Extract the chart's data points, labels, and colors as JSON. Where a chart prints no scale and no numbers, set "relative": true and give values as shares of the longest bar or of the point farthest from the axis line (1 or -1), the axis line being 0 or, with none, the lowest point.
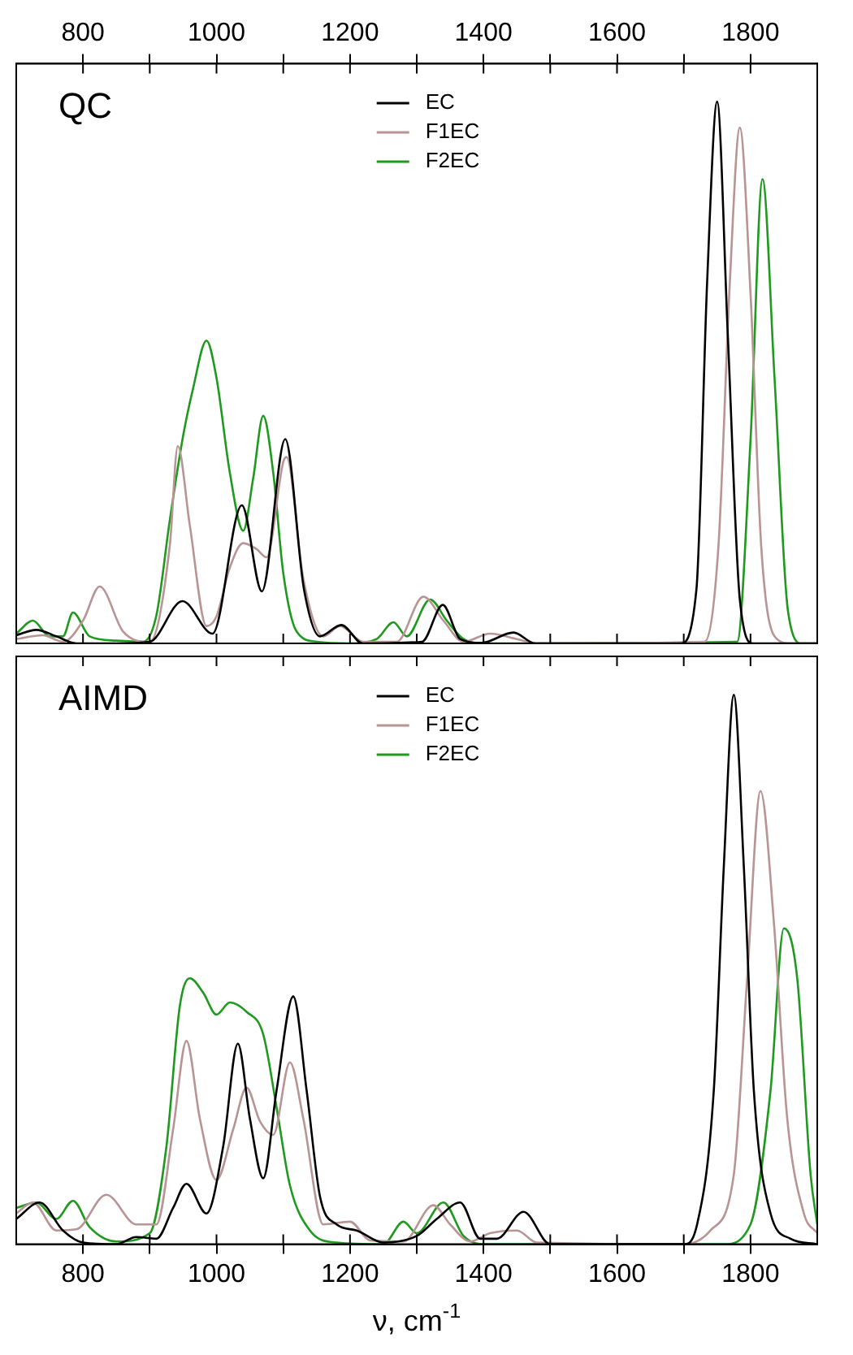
{
  "chart_data": [
    {
      "type": "line",
      "title": "QC",
      "relative": true,
      "legend": "top",
      "tick_labels": "x",
      "xlim": [
        700,
        1900
      ],
      "xticks": [
        800,
        {
          "value": 900,
          "label": null
        },
        1000,
        {
          "value": 1100,
          "label": null
        },
        1200,
        {
          "value": 1300,
          "label": null
        },
        1400,
        {
          "value": 1500,
          "label": null
        },
        1600,
        {
          "value": 1700,
          "label": null
        },
        1800
      ],
      "series": [
        {
          "name": "EC",
          "color": "#000000",
          "x": [
            700,
            730,
            760,
            790,
            850,
            900,
            949,
            994,
            1038,
            1068,
            1103,
            1131,
            1155,
            1187,
            1219,
            1308,
            1339,
            1365,
            1397,
            1445,
            1477,
            1695,
            1719,
            1735,
            1750,
            1766,
            1784,
            1804,
            1900
          ],
          "values": [
            0.015,
            0.025,
            0.013,
            0,
            0,
            0.003,
            0.078,
            0.018,
            0.255,
            0.096,
            0.377,
            0.1,
            0.013,
            0.034,
            0,
            0.003,
            0.071,
            0.008,
            0.001,
            0.02,
            0,
            0,
            0.1,
            0.666,
            1,
            0.569,
            0.081,
            0,
            0
          ]
        },
        {
          "name": "F1EC",
          "color": "#b89494",
          "x": [
            700,
            740,
            770,
            800,
            825,
            860,
            900,
            930,
            942,
            960,
            985,
            1000,
            1020,
            1040,
            1060,
            1075,
            1100,
            1105,
            1130,
            1160,
            1185,
            1220,
            1270,
            1310,
            1340,
            1370,
            1410,
            1450,
            1480,
            1731,
            1752,
            1769,
            1784,
            1800,
            1816,
            1836,
            1860,
            1900
          ],
          "values": [
            0.008,
            0.015,
            0.003,
            0.042,
            0.105,
            0.022,
            0.003,
            0.18,
            0.364,
            0.218,
            0.032,
            0.05,
            0.14,
            0.185,
            0.174,
            0.159,
            0.335,
            0.344,
            0.12,
            0.013,
            0.032,
            0.003,
            0.003,
            0.086,
            0.042,
            0.003,
            0.018,
            0.008,
            0,
            0.003,
            0.18,
            0.666,
            0.952,
            0.647,
            0.18,
            0.013,
            0,
            0
          ]
        },
        {
          "name": "F2EC",
          "color": "#1f9a1f",
          "x": [
            700,
            725,
            750,
            770,
            785,
            810,
            850,
            890,
            910,
            930,
            950,
            965,
            985,
            1000,
            1020,
            1040,
            1055,
            1070,
            1085,
            1100,
            1120,
            1150,
            1200,
            1240,
            1265,
            1285,
            1320,
            1345,
            1370,
            1400,
            1780,
            1800,
            1818,
            1836,
            1856,
            1877,
            1900
          ],
          "values": [
            0.018,
            0.042,
            0.013,
            0.013,
            0.057,
            0.013,
            0.005,
            0.003,
            0.052,
            0.227,
            0.383,
            0.471,
            0.559,
            0.49,
            0.315,
            0.208,
            0.305,
            0.42,
            0.315,
            0.13,
            0.022,
            0.003,
            0,
            0.008,
            0.039,
            0.013,
            0.081,
            0.042,
            0.008,
            0,
            0.003,
            0.374,
            0.857,
            0.49,
            0.061,
            0,
            0
          ]
        }
      ]
    },
    {
      "type": "line",
      "title": "AIMD",
      "xlabel": "ν, cm$^{-1}$",
      "relative": true,
      "legend": "top",
      "tick_labels": "x",
      "xlim": [
        700,
        1900
      ],
      "xticks": [
        800,
        {
          "value": 900,
          "label": null
        },
        1000,
        {
          "value": 1100,
          "label": null
        },
        1200,
        {
          "value": 1300,
          "label": null
        },
        1400,
        {
          "value": 1500,
          "label": null
        },
        1600,
        {
          "value": 1700,
          "label": null
        },
        1800
      ],
      "series": [
        {
          "name": "EC",
          "color": "#000000",
          "x": [
            700,
            735,
            770,
            800,
            850,
            880,
            910,
            935,
            955,
            985,
            1010,
            1032,
            1050,
            1070,
            1090,
            1115,
            1135,
            1155,
            1180,
            1210,
            1250,
            1300,
            1330,
            1365,
            1395,
            1420,
            1460,
            1500,
            1700,
            1720,
            1745,
            1760,
            1775,
            1790,
            1805,
            1830,
            1860,
            1900
          ],
          "values": [
            0.046,
            0.076,
            0.025,
            0.003,
            0,
            0.013,
            0.01,
            0.066,
            0.11,
            0.056,
            0.178,
            0.365,
            0.229,
            0.12,
            0.28,
            0.451,
            0.28,
            0.087,
            0.036,
            0.025,
            0.003,
            0.015,
            0.046,
            0.076,
            0.01,
            0.01,
            0.059,
            0,
            0,
            0.036,
            0.28,
            0.687,
            1,
            0.687,
            0.28,
            0.056,
            0.01,
            0
          ]
        },
        {
          "name": "F1EC",
          "color": "#b89494",
          "x": [
            700,
            725,
            760,
            790,
            835,
            880,
            910,
            935,
            955,
            975,
            1000,
            1025,
            1045,
            1065,
            1085,
            1110,
            1130,
            1160,
            1200,
            1230,
            1280,
            1325,
            1350,
            1380,
            1410,
            1450,
            1480,
            1700,
            1740,
            1775,
            1795,
            1815,
            1835,
            1855,
            1880,
            1900
          ],
          "values": [
            0.056,
            0.076,
            0.025,
            0.027,
            0.09,
            0.036,
            0.036,
            0.209,
            0.37,
            0.229,
            0.117,
            0.209,
            0.285,
            0.224,
            0.199,
            0.331,
            0.229,
            0.036,
            0.041,
            0.007,
            0.005,
            0.071,
            0.036,
            0.005,
            0.02,
            0.025,
            0.003,
            0,
            0.025,
            0.127,
            0.484,
            0.825,
            0.586,
            0.229,
            0.056,
            0.02
          ]
        },
        {
          "name": "F2EC",
          "color": "#1f9a1f",
          "x": [
            700,
            730,
            760,
            785,
            810,
            850,
            900,
            925,
            945,
            960,
            980,
            1000,
            1020,
            1045,
            1070,
            1090,
            1110,
            1140,
            1180,
            1250,
            1280,
            1300,
            1340,
            1370,
            1400,
            1760,
            1800,
            1830,
            1850,
            1870,
            1890,
            1900
          ],
          "values": [
            0.066,
            0.076,
            0.046,
            0.079,
            0.031,
            0.005,
            0.02,
            0.178,
            0.433,
            0.484,
            0.458,
            0.418,
            0.44,
            0.423,
            0.382,
            0.249,
            0.107,
            0.025,
            0.003,
            0,
            0.041,
            0.02,
            0.076,
            0.015,
            0,
            0,
            0.036,
            0.28,
            0.575,
            0.484,
            0.127,
            0.036
          ]
        }
      ]
    }
  ]
}
